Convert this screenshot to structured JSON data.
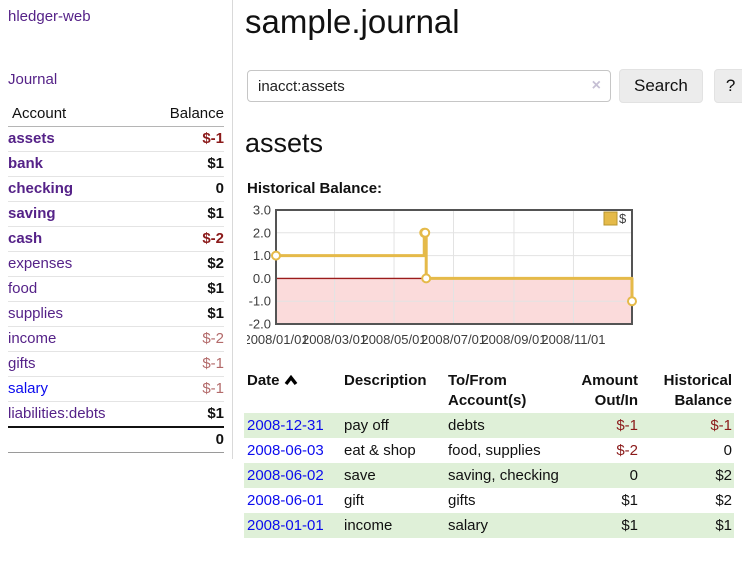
{
  "colors": {
    "link_visited_purple": "#552288",
    "link_blue": "#0c0cee",
    "negative_strong": "#8b1a1a",
    "negative_soft": "#b36a6a",
    "row_stripe_green": "#dff0d8",
    "button_gray": "#ececec"
  },
  "sidebar": {
    "app_title": "hledger-web",
    "journal_label": "Journal",
    "table": {
      "account_header": "Account",
      "balance_header": "Balance",
      "rows": [
        {
          "name": "assets",
          "balance": "$-1"
        },
        {
          "name": "bank",
          "balance": "$1"
        },
        {
          "name": "checking",
          "balance": "0"
        },
        {
          "name": "saving",
          "balance": "$1"
        },
        {
          "name": "cash",
          "balance": "$-2"
        },
        {
          "name": "expenses",
          "balance": "$2"
        },
        {
          "name": "food",
          "balance": "$1"
        },
        {
          "name": "supplies",
          "balance": "$1"
        },
        {
          "name": "income",
          "balance": "$-2"
        },
        {
          "name": "gifts",
          "balance": "$-1"
        },
        {
          "name": "salary",
          "balance": "$-1"
        },
        {
          "name": "liabilities:debts",
          "balance": "$1"
        }
      ],
      "total": "0"
    }
  },
  "main": {
    "title": "sample.journal",
    "search": {
      "value": "inacct:assets",
      "clear_icon": "×",
      "button_label": "Search",
      "help_label": "?"
    },
    "account_heading": "assets",
    "chart_label": "Historical Balance:"
  },
  "chart_data": {
    "type": "line",
    "step": true,
    "title": "Historical Balance:",
    "series": [
      {
        "name": "$",
        "points": [
          [
            "2008-01-01",
            1
          ],
          [
            "2008-06-01",
            2
          ],
          [
            "2008-06-02",
            2
          ],
          [
            "2008-06-03",
            0
          ],
          [
            "2008-12-31",
            -1
          ]
        ]
      }
    ],
    "x_range": [
      "2008-01-01",
      "2008-12-31"
    ],
    "x_ticks": [
      "2008/01/01",
      "2008/03/01",
      "2008/05/01",
      "2008/07/01",
      "2008/09/01",
      "2008/11/01"
    ],
    "y_ticks": [
      3.0,
      2.0,
      1.0,
      0.0,
      -1.0,
      -2.0
    ],
    "ylim": [
      -2,
      3
    ],
    "grid": true,
    "legend": {
      "label": "$",
      "position": "top-right"
    },
    "colors": {
      "line": "#e5ba49",
      "marker_fill": "#ffffff",
      "legend_box_border": "#b8952e",
      "negative_area": "#fbdbdb",
      "zero_line": "#9b1c1c",
      "grid": "#e3e3e3",
      "border": "#545454"
    }
  },
  "register": {
    "headers": {
      "date": "Date",
      "sort_icon": "chevron-up",
      "description": "Description",
      "accounts": "To/From Account(s)",
      "amount": "Amount Out/In",
      "balance": "Historical Balance"
    },
    "rows": [
      {
        "date": "2008-12-31",
        "description": "pay off",
        "accounts": "debts",
        "amount": "$-1",
        "balance": "$-1"
      },
      {
        "date": "2008-06-03",
        "description": "eat & shop",
        "accounts": "food, supplies",
        "amount": "$-2",
        "balance": "0"
      },
      {
        "date": "2008-06-02",
        "description": "save",
        "accounts": "saving, checking",
        "amount": "0",
        "balance": "$2"
      },
      {
        "date": "2008-06-01",
        "description": "gift",
        "accounts": "gifts",
        "amount": "$1",
        "balance": "$2"
      },
      {
        "date": "2008-01-01",
        "description": "income",
        "accounts": "salary",
        "amount": "$1",
        "balance": "$1"
      }
    ]
  }
}
